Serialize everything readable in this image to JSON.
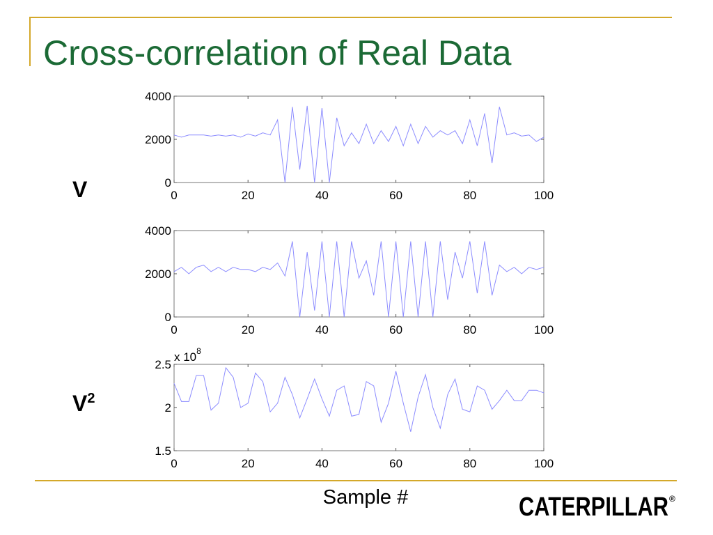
{
  "title": "Cross-correlation of Real Data",
  "row_labels": [
    {
      "base": "V"
    },
    {
      "base": "V",
      "sup": "2"
    }
  ],
  "x_label": "Sample #",
  "brand": {
    "name": "CATERPILLAR",
    "mark": "®"
  },
  "chart_data": [
    {
      "type": "line",
      "color": "#8c8cff",
      "x": [
        0,
        2,
        4,
        6,
        8,
        10,
        12,
        14,
        16,
        18,
        20,
        22,
        24,
        26,
        28,
        30,
        32,
        34,
        36,
        38,
        40,
        42,
        44,
        46,
        48,
        50,
        52,
        54,
        56,
        58,
        60,
        62,
        64,
        66,
        68,
        70,
        72,
        74,
        76,
        78,
        80,
        82,
        84,
        86,
        88,
        90,
        92,
        94,
        96,
        98,
        100
      ],
      "values": [
        2200,
        2100,
        2200,
        2200,
        2200,
        2150,
        2200,
        2150,
        2200,
        2100,
        2250,
        2150,
        2300,
        2200,
        2900,
        0,
        3500,
        600,
        3550,
        0,
        3450,
        0,
        3000,
        1700,
        2300,
        1800,
        2700,
        1800,
        2400,
        1900,
        2600,
        1700,
        2700,
        1800,
        2600,
        2100,
        2400,
        2200,
        2400,
        1800,
        2900,
        1700,
        3200,
        900,
        3500,
        2200,
        2300,
        2150,
        2200,
        1900,
        2100
      ],
      "xlim": [
        0,
        100
      ],
      "ylim": [
        0,
        4000
      ],
      "xticks": [
        0,
        20,
        40,
        60,
        80,
        100
      ],
      "yticks": [
        0,
        2000,
        4000
      ]
    },
    {
      "type": "line",
      "color": "#8c8cff",
      "x": [
        0,
        2,
        4,
        6,
        8,
        10,
        12,
        14,
        16,
        18,
        20,
        22,
        24,
        26,
        28,
        30,
        32,
        34,
        36,
        38,
        40,
        42,
        44,
        46,
        48,
        50,
        52,
        54,
        56,
        58,
        60,
        62,
        64,
        66,
        68,
        70,
        72,
        74,
        76,
        78,
        80,
        82,
        84,
        86,
        88,
        90,
        92,
        94,
        96,
        98,
        100
      ],
      "values": [
        2100,
        2300,
        2000,
        2300,
        2400,
        2100,
        2300,
        2100,
        2300,
        2200,
        2200,
        2100,
        2300,
        2200,
        2500,
        1900,
        3500,
        0,
        3000,
        300,
        3500,
        0,
        3500,
        0,
        3500,
        1800,
        2600,
        1000,
        3500,
        0,
        3500,
        0,
        3500,
        0,
        3500,
        0,
        3500,
        800,
        3000,
        1800,
        3500,
        1100,
        3500,
        1000,
        2400,
        2100,
        2300,
        2000,
        2300,
        2200,
        2300
      ],
      "xlim": [
        0,
        100
      ],
      "ylim": [
        0,
        4000
      ],
      "xticks": [
        0,
        20,
        40,
        60,
        80,
        100
      ],
      "yticks": [
        0,
        2000,
        4000
      ]
    },
    {
      "type": "line",
      "color": "#8c8cff",
      "y_multiplier": "x 10",
      "y_multiplier_exp": "8",
      "x": [
        0,
        2,
        4,
        6,
        8,
        10,
        12,
        14,
        16,
        18,
        20,
        22,
        24,
        26,
        28,
        30,
        32,
        34,
        36,
        38,
        40,
        42,
        44,
        46,
        48,
        50,
        52,
        54,
        56,
        58,
        60,
        62,
        64,
        66,
        68,
        70,
        72,
        74,
        76,
        78,
        80,
        82,
        84,
        86,
        88,
        90,
        92,
        94,
        96,
        98,
        100
      ],
      "values": [
        2.28,
        2.07,
        2.07,
        2.37,
        2.37,
        1.97,
        2.05,
        2.46,
        2.35,
        2.0,
        2.05,
        2.4,
        2.3,
        1.95,
        2.05,
        2.35,
        2.15,
        1.88,
        2.1,
        2.33,
        2.1,
        1.9,
        2.2,
        2.25,
        1.9,
        1.92,
        2.3,
        2.25,
        1.83,
        2.05,
        2.42,
        2.05,
        1.72,
        2.12,
        2.38,
        2.0,
        1.76,
        2.15,
        2.33,
        1.98,
        1.95,
        2.25,
        2.2,
        1.98,
        2.08,
        2.2,
        2.08,
        2.08,
        2.2,
        2.2,
        2.17
      ],
      "xlim": [
        0,
        100
      ],
      "ylim": [
        1.5,
        2.5
      ],
      "xticks": [
        0,
        20,
        40,
        60,
        80,
        100
      ],
      "yticks": [
        1.5,
        2,
        2.5
      ]
    }
  ]
}
